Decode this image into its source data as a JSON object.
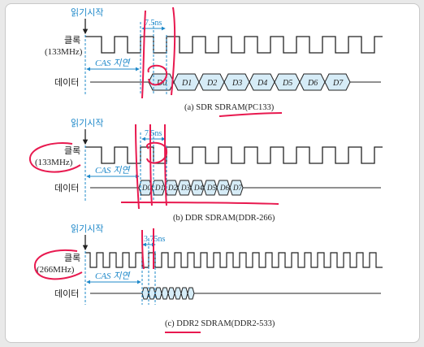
{
  "colors": {
    "accent_blue": "#1e88c9",
    "annotation_red": "#e8194f",
    "data_fill": "#d6ecf7"
  },
  "panels": [
    {
      "start_label": "읽기시작",
      "clock_label": "클록",
      "clock_freq": "(133MHz)",
      "data_label": "데이터",
      "timing_label": "7.5ns",
      "cas_label": "CAS 지연",
      "data_items": [
        "D0",
        "D1",
        "D2",
        "D3",
        "D4",
        "D5",
        "D6",
        "D7"
      ],
      "caption": "(a) SDR SDRAM(PC133)"
    },
    {
      "start_label": "읽기시작",
      "clock_label": "클록",
      "clock_freq": "(133MHz)",
      "data_label": "데이터",
      "timing_label": "7.5ns",
      "cas_label": "CAS 지연",
      "data_items": [
        "D0",
        "D1",
        "D2",
        "D3",
        "D4",
        "D5",
        "D6",
        "D7"
      ],
      "caption": "(b) DDR SDRAM(DDR-266)"
    },
    {
      "start_label": "읽기시작",
      "clock_label": "클록",
      "clock_freq": "(266MHz)",
      "data_label": "데이터",
      "timing_label": "3.75ns",
      "cas_label": "CAS 지연",
      "data_items": [
        "",
        "",
        "",
        "",
        "",
        "",
        "",
        ""
      ],
      "caption": "(c) DDR2 SDRAM(DDR2-533)"
    }
  ]
}
